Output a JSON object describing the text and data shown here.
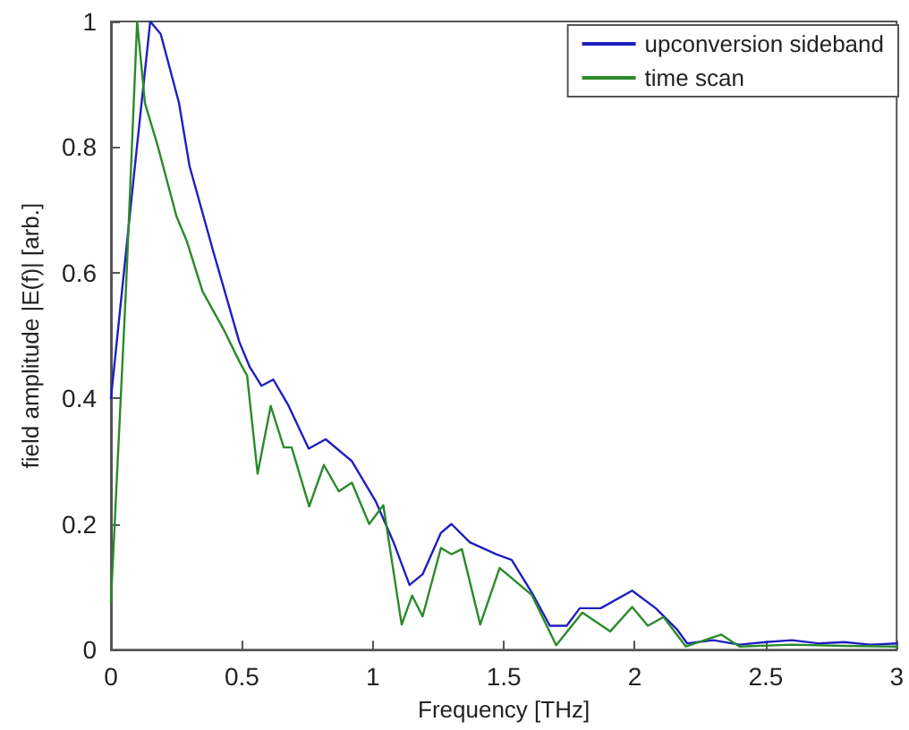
{
  "chart_data": {
    "type": "line",
    "xlabel": "Frequency [THz]",
    "ylabel": "field amplitude |E(f)| [arb.]",
    "xlim": [
      0,
      3
    ],
    "ylim": [
      0,
      1
    ],
    "xticks": [
      0,
      0.5,
      1,
      1.5,
      2,
      2.5,
      3
    ],
    "yticks": [
      0,
      0.2,
      0.4,
      0.6,
      0.8,
      1
    ],
    "grid": false,
    "legend": "top right",
    "marker": "none",
    "line_style": "solid",
    "series": [
      {
        "name": "upconversion sideband",
        "color": "#1f1fbf",
        "x": [
          0,
          0.088,
          0.15,
          0.19,
          0.26,
          0.3,
          0.39,
          0.49,
          0.53,
          0.575,
          0.62,
          0.676,
          0.755,
          0.82,
          0.92,
          1.01,
          1.08,
          1.14,
          1.19,
          1.26,
          1.3,
          1.37,
          1.47,
          1.53,
          1.607,
          1.676,
          1.74,
          1.79,
          1.87,
          1.99,
          2.08,
          2.16,
          2.2,
          2.3,
          2.4,
          2.5,
          2.6,
          2.7,
          2.8,
          2.9,
          3
        ],
        "values": [
          0.4,
          0.756,
          1,
          0.98,
          0.87,
          0.77,
          0.635,
          0.49,
          0.45,
          0.42,
          0.43,
          0.39,
          0.32,
          0.335,
          0.3,
          0.237,
          0.17,
          0.103,
          0.12,
          0.186,
          0.2,
          0.171,
          0.152,
          0.143,
          0.091,
          0.038,
          0.038,
          0.066,
          0.066,
          0.094,
          0.066,
          0.033,
          0.01,
          0.015,
          0.008,
          0.012,
          0.015,
          0.01,
          0.012,
          0.008,
          0.01
        ]
      },
      {
        "name": "time scan",
        "color": "#2a8a2a",
        "x": [
          0,
          0.057,
          0.1,
          0.13,
          0.18,
          0.25,
          0.29,
          0.35,
          0.43,
          0.49,
          0.52,
          0.56,
          0.61,
          0.66,
          0.69,
          0.757,
          0.813,
          0.87,
          0.92,
          0.986,
          1.04,
          1.11,
          1.15,
          1.19,
          1.26,
          1.3,
          1.34,
          1.41,
          1.484,
          1.607,
          1.7,
          1.8,
          1.906,
          1.99,
          2.05,
          2.11,
          2.195,
          2.33,
          2.4,
          2.6,
          2.8,
          3
        ],
        "values": [
          0.077,
          0.57,
          1,
          0.87,
          0.8,
          0.69,
          0.65,
          0.57,
          0.51,
          0.459,
          0.436,
          0.28,
          0.388,
          0.322,
          0.322,
          0.228,
          0.294,
          0.252,
          0.266,
          0.2,
          0.23,
          0.04,
          0.086,
          0.053,
          0.162,
          0.152,
          0.16,
          0.04,
          0.13,
          0.087,
          0.007,
          0.059,
          0.029,
          0.068,
          0.038,
          0.052,
          0.005,
          0.024,
          0.005,
          0.008,
          0.006,
          0.005
        ]
      }
    ]
  }
}
